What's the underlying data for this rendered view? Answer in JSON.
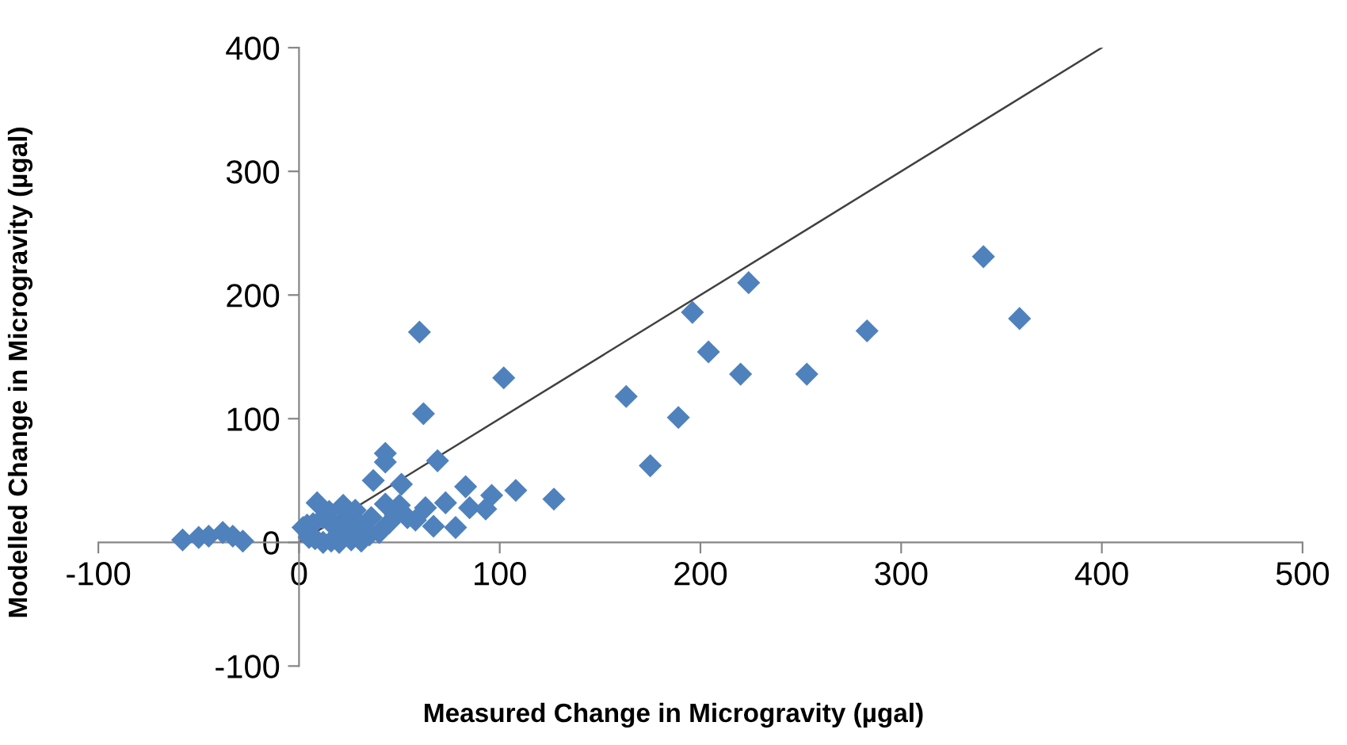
{
  "chart_data": {
    "type": "scatter",
    "xlabel": "Measured Change in Microgravity (µgal)",
    "ylabel": "Modelled Change in Microgravity (µgal)",
    "xlim": [
      -100,
      500
    ],
    "ylim": [
      -100,
      400
    ],
    "xticks": [
      -100,
      0,
      100,
      200,
      300,
      400,
      500
    ],
    "yticks": [
      -100,
      0,
      100,
      200,
      300,
      400
    ],
    "grid": false,
    "legend": false,
    "series": [
      {
        "color": "#4f81bd",
        "marker": "diamond",
        "x": [
          341,
          359,
          283,
          253,
          220,
          224,
          196,
          204,
          189,
          175,
          163,
          127,
          108,
          60,
          102,
          62,
          69,
          43,
          43,
          37,
          51,
          83,
          96,
          73,
          85,
          93,
          63,
          67,
          78,
          43,
          54,
          9,
          28,
          -58,
          -50,
          -45,
          -38,
          -33,
          -28,
          2,
          5,
          7,
          12,
          15,
          18,
          22,
          24,
          30,
          35,
          40,
          45,
          48,
          12,
          16,
          20,
          26,
          31,
          4,
          8,
          22,
          36,
          50,
          58
        ],
        "values": [
          231,
          181,
          171,
          136,
          136,
          210,
          186,
          154,
          101,
          62,
          118,
          35,
          42,
          170,
          133,
          104,
          66,
          72,
          65,
          50,
          47,
          45,
          38,
          32,
          28,
          27,
          28,
          13,
          12,
          31,
          20,
          32,
          26,
          2,
          4,
          5,
          8,
          5,
          1,
          12,
          4,
          15,
          20,
          25,
          12,
          18,
          8,
          15,
          6,
          8,
          16,
          22,
          0,
          1,
          0,
          2,
          1,
          14,
          3,
          30,
          20,
          30,
          18
        ]
      },
      {
        "type": "line",
        "color": "#404040",
        "marker": "none",
        "x": [
          0,
          400
        ],
        "values": [
          0,
          400
        ]
      }
    ]
  }
}
